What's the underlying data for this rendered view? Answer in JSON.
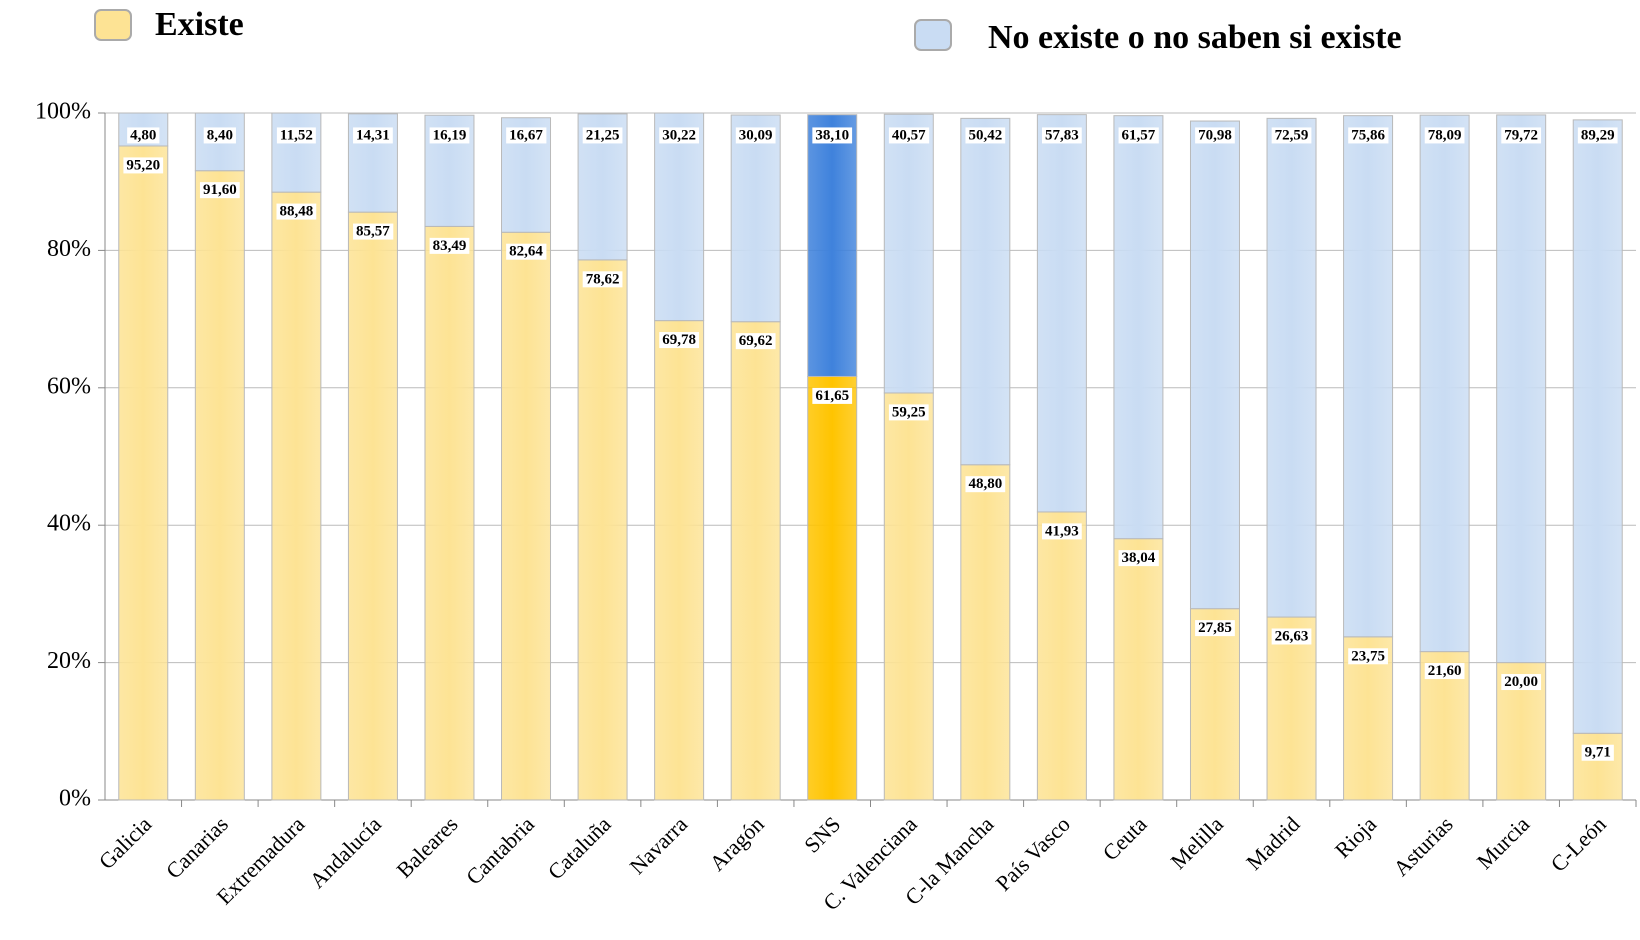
{
  "chart_data": {
    "type": "stacked_bar",
    "categories": [
      "Galicia",
      "Canarias",
      "Extremadura",
      "Andalucía",
      "Baleares",
      "Cantabria",
      "Cataluña",
      "Navarra",
      "Aragón",
      "SNS",
      "C. Valenciana",
      "C-la Mancha",
      "País Vasco",
      "Ceuta",
      "Melilla",
      "Madrid",
      "Rioja",
      "Asturias",
      "Murcia",
      "C-León"
    ],
    "highlight": "SNS",
    "series": [
      {
        "name": "Existe",
        "color": "#fde394",
        "highlight_color": "#ffc400",
        "values": [
          95.2,
          91.6,
          88.48,
          85.57,
          83.49,
          82.64,
          78.62,
          69.78,
          69.62,
          61.65,
          59.25,
          48.8,
          41.93,
          38.04,
          27.85,
          26.63,
          23.75,
          21.6,
          20,
          9.71
        ],
        "value_labels": [
          "95,20",
          "91,60",
          "88,48",
          "85,57",
          "83,49",
          "82,64",
          "78,62",
          "69,78",
          "69,62",
          "61,65",
          "59,25",
          "48,80",
          "41,93",
          "38,04",
          "27,85",
          "26,63",
          "23,75",
          "21,60",
          "20,00",
          "9,71"
        ]
      },
      {
        "name": "No existe o no saben si existe",
        "color": "#c9dcf3",
        "highlight_color": "#3f82dc",
        "values": [
          4.8,
          8.4,
          11.52,
          14.31,
          16.19,
          16.67,
          21.25,
          30.22,
          30.09,
          38.1,
          40.57,
          50.42,
          57.83,
          61.57,
          70.98,
          72.59,
          75.86,
          78.09,
          79.72,
          89.29
        ],
        "value_labels": [
          "4,80",
          "8,40",
          "11,52",
          "14,31",
          "16,19",
          "16,67",
          "21,25",
          "30,22",
          "30,09",
          "38,10",
          "40,57",
          "50,42",
          "57,83",
          "61,57",
          "70,98",
          "72,59",
          "75,86",
          "78,09",
          "79,72",
          "89,29"
        ]
      }
    ],
    "ylim": [
      0,
      100
    ],
    "yticks": [
      {
        "value": 0,
        "label": "0%"
      },
      {
        "value": 20,
        "label": "20%"
      },
      {
        "value": 40,
        "label": "40%"
      },
      {
        "value": 60,
        "label": "60%"
      },
      {
        "value": 80,
        "label": "80%"
      },
      {
        "value": 100,
        "label": "100%"
      }
    ],
    "grid": true
  }
}
